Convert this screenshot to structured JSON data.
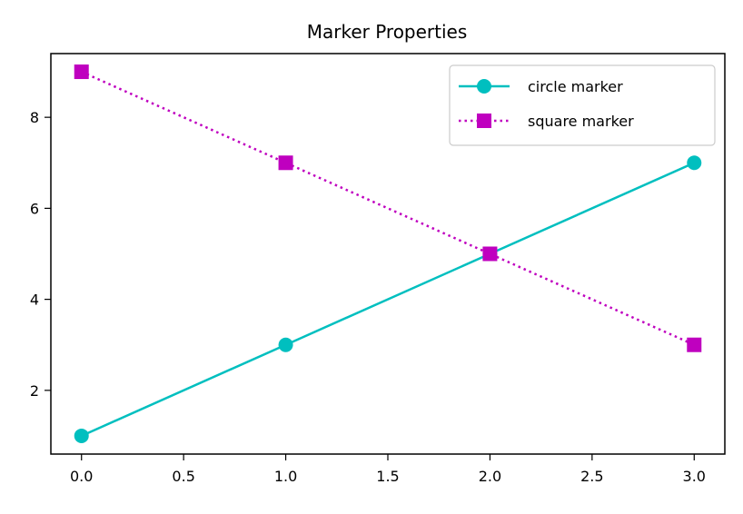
{
  "chart_data": {
    "type": "line",
    "title": "Marker Properties",
    "xlabel": "",
    "ylabel": "",
    "xlim": [
      -0.15,
      3.15
    ],
    "ylim": [
      0.6,
      9.4
    ],
    "x_ticks": [
      {
        "value": 0.0,
        "label": "0.0"
      },
      {
        "value": 0.5,
        "label": "0.5"
      },
      {
        "value": 1.0,
        "label": "1.0"
      },
      {
        "value": 1.5,
        "label": "1.5"
      },
      {
        "value": 2.0,
        "label": "2.0"
      },
      {
        "value": 2.5,
        "label": "2.5"
      },
      {
        "value": 3.0,
        "label": "3.0"
      }
    ],
    "y_ticks": [
      {
        "value": 2,
        "label": "2"
      },
      {
        "value": 4,
        "label": "4"
      },
      {
        "value": 6,
        "label": "6"
      },
      {
        "value": 8,
        "label": "8"
      }
    ],
    "grid": false,
    "legend_position": "top-right",
    "series": [
      {
        "name": "circle marker",
        "x": [
          0,
          1,
          2,
          3
        ],
        "values": [
          1,
          3,
          5,
          7
        ],
        "color": "#00bfbf",
        "marker": "circle",
        "line_style": "solid"
      },
      {
        "name": "square marker",
        "x": [
          0,
          1,
          2,
          3
        ],
        "values": [
          9,
          7,
          5,
          3
        ],
        "color": "#bf00bf",
        "marker": "square",
        "line_style": "dotted"
      }
    ]
  }
}
